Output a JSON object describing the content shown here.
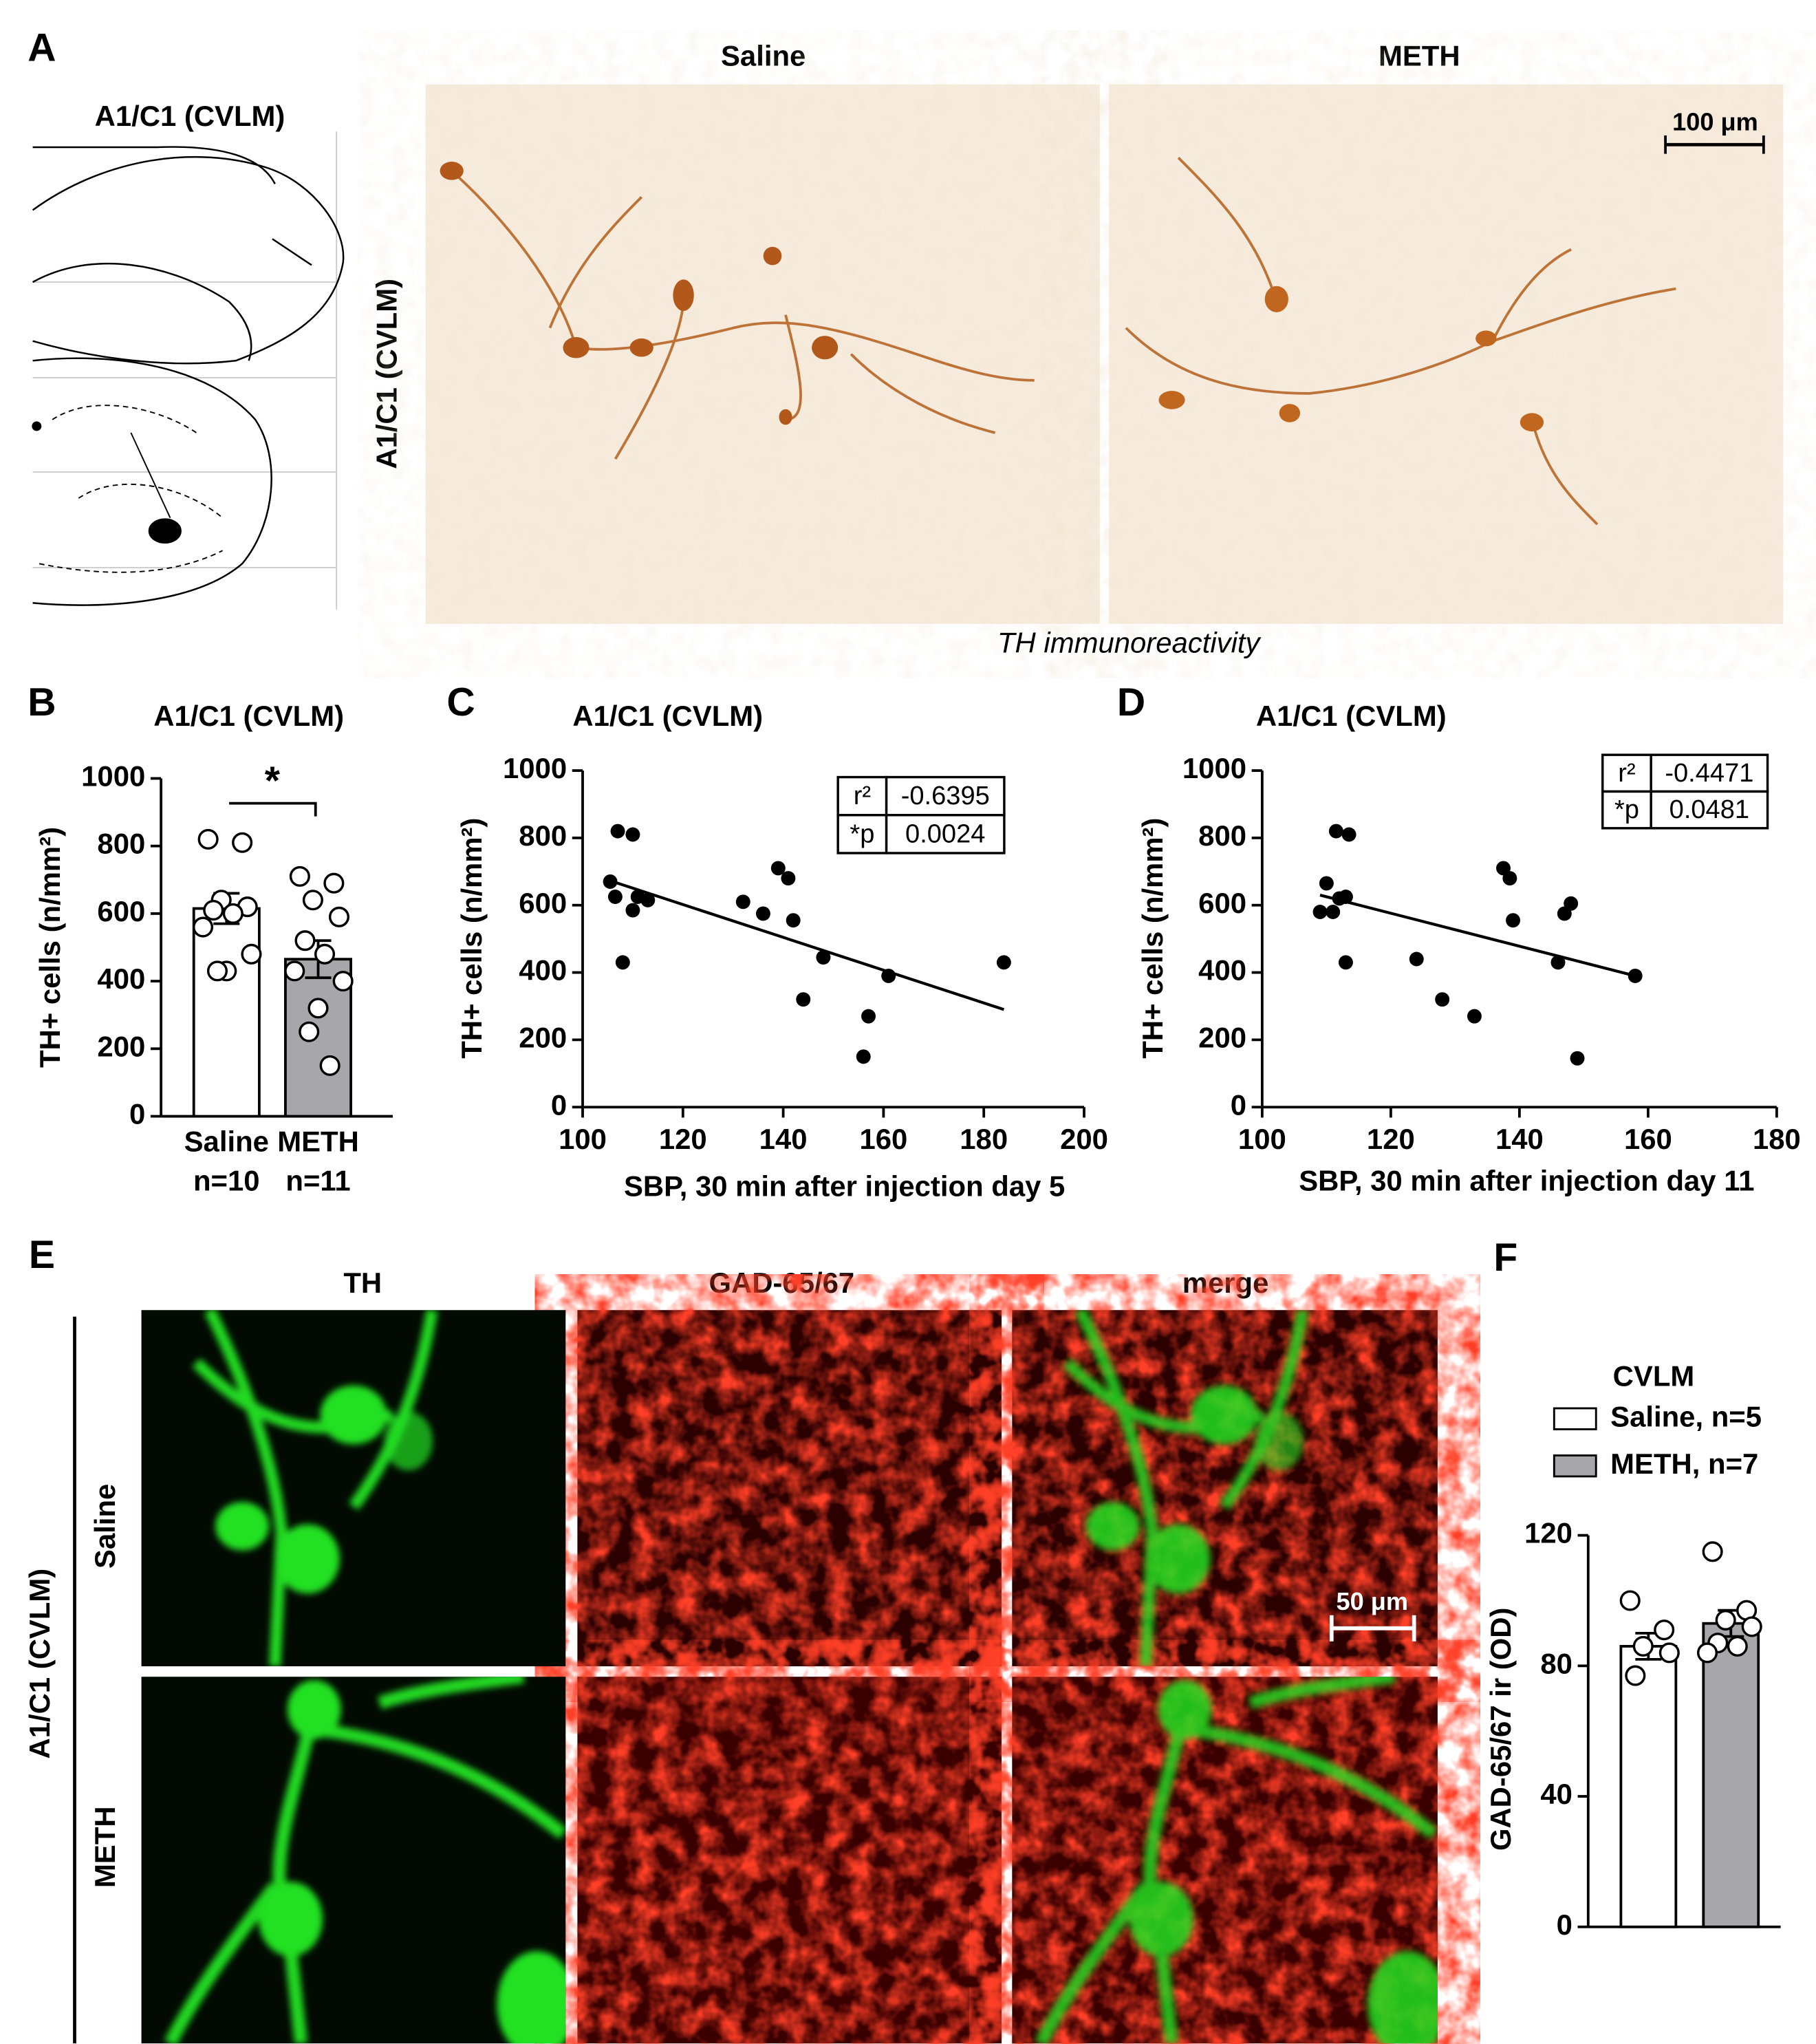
{
  "panels": {
    "A": {
      "panel": "A",
      "atlas_title": "A1/C1 (CVLM)",
      "columns": [
        "Saline",
        "METH"
      ],
      "row_label": "A1/C1 (CVLM)",
      "scale_bar": "100 μm",
      "caption": "TH immunoreactivity"
    },
    "E": {
      "panel": "E",
      "columns": [
        "TH",
        "GAD-65/67",
        "merge"
      ],
      "rows": [
        "Saline",
        "METH"
      ],
      "row_group": "A1/C1 (CVLM)",
      "scale_bar": "50 μm"
    }
  },
  "chart_data": [
    {
      "type": "bar",
      "panel": "B",
      "title": "A1/C1 (CVLM)",
      "ylabel": "TH+ cells  (n/mm²)",
      "categories": [
        "Saline",
        "METH"
      ],
      "sublabels": [
        "n=10",
        "n=11"
      ],
      "values": [
        615,
        465
      ],
      "errors": [
        45,
        55
      ],
      "colors": [
        "#ffffff",
        "#a7a7ab"
      ],
      "points": [
        [
          820,
          810,
          640,
          620,
          610,
          600,
          560,
          480,
          430,
          430
        ],
        [
          710,
          690,
          640,
          590,
          520,
          480,
          430,
          400,
          320,
          250,
          150
        ]
      ],
      "annotation": "*",
      "ylim": [
        0,
        1000
      ],
      "yticks": [
        0,
        200,
        400,
        600,
        800,
        1000
      ]
    },
    {
      "type": "scatter",
      "panel": "C",
      "title": "A1/C1 (CVLM)",
      "xlabel": "SBP, 30 min after injection day 5",
      "ylabel": "TH+ cells (n/mm²)",
      "x": [
        105.5,
        106.5,
        107,
        108,
        110,
        110,
        111,
        113,
        132,
        136,
        139,
        141,
        142,
        148,
        144,
        157,
        156,
        161,
        184
      ],
      "values": [
        670,
        625,
        820,
        430,
        810,
        585,
        625,
        615,
        610,
        575,
        710,
        680,
        555,
        445,
        320,
        270,
        150,
        390,
        430
      ],
      "color": "#000000",
      "fit": {
        "x": [
          105,
          184
        ],
        "values": [
          675,
          290
        ]
      },
      "stats": [
        [
          "r²",
          "-0.6395"
        ],
        [
          "*p",
          "0.0024"
        ]
      ],
      "xlim": [
        100,
        200
      ],
      "xticks": [
        100,
        120,
        140,
        160,
        180,
        200
      ],
      "ylim": [
        0,
        1000
      ],
      "yticks": [
        0,
        200,
        400,
        600,
        800,
        1000
      ]
    },
    {
      "type": "scatter",
      "panel": "D",
      "title": "A1/C1 (CVLM)",
      "xlabel": "SBP, 30 min after injection day 11",
      "ylabel": "TH+ cells (n/mm²)",
      "x": [
        109,
        110,
        111,
        111.5,
        112,
        113,
        113.5,
        113,
        124,
        128,
        133,
        137.5,
        138.5,
        139,
        146,
        147,
        148,
        149,
        158
      ],
      "values": [
        580,
        665,
        580,
        820,
        620,
        625,
        810,
        430,
        440,
        320,
        270,
        710,
        680,
        555,
        430,
        575,
        605,
        145,
        390
      ],
      "color": "#000000",
      "fit": {
        "x": [
          109,
          158
        ],
        "values": [
          630,
          390
        ]
      },
      "stats": [
        [
          "r²",
          "-0.4471"
        ],
        [
          "*p",
          "0.0481"
        ]
      ],
      "xlim": [
        100,
        180
      ],
      "xticks": [
        100,
        120,
        140,
        160,
        180
      ],
      "ylim": [
        0,
        1000
      ],
      "yticks": [
        0,
        200,
        400,
        600,
        800,
        1000
      ]
    },
    {
      "type": "bar",
      "panel": "F",
      "title": "CVLM",
      "ylabel": "GAD-65/67 ir (OD)",
      "series": [
        {
          "name": "Saline, n=5",
          "color": "#ffffff",
          "values": [
            86
          ],
          "errors": [
            4
          ],
          "points": [
            100,
            91,
            86,
            84,
            77
          ]
        },
        {
          "name": "METH, n=7",
          "color": "#a7a7ab",
          "values": [
            93
          ],
          "errors": [
            4
          ],
          "points": [
            115,
            97,
            94,
            92,
            87,
            86,
            84
          ]
        }
      ],
      "ylim": [
        0,
        120
      ],
      "yticks": [
        0,
        40,
        80,
        120
      ]
    }
  ]
}
